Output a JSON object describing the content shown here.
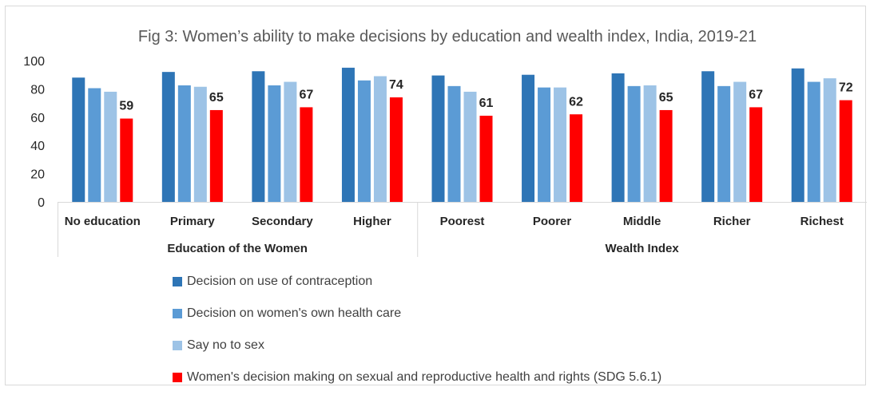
{
  "chart_data": {
    "type": "bar",
    "title": "Fig 3: Women’s ability to make decisions by education and wealth index, India, 2019-21",
    "ylim": [
      0,
      100
    ],
    "yticks": [
      0,
      20,
      40,
      60,
      80,
      100
    ],
    "categories": [
      "No education",
      "Primary",
      "Secondary",
      "Higher",
      "Poorest",
      "Poorer",
      "Middle",
      "Richer",
      "Richest"
    ],
    "groups": [
      {
        "label": "Education of the Women",
        "categories": [
          "No education",
          "Primary",
          "Secondary",
          "Higher"
        ]
      },
      {
        "label": "Wealth Index",
        "categories": [
          "Poorest",
          "Poorer",
          "Middle",
          "Richer",
          "Richest"
        ]
      }
    ],
    "series": [
      {
        "name": "Decision on use of contraception",
        "color": "#2e75b6",
        "values": [
          88,
          92,
          92.5,
          95,
          89.5,
          90,
          91,
          92.5,
          94.5
        ],
        "show_labels": false
      },
      {
        "name": "Decision on women's own health care",
        "color": "#5b9bd5",
        "values": [
          80.5,
          82.5,
          82.5,
          86,
          82,
          81,
          82,
          82,
          85
        ],
        "show_labels": false
      },
      {
        "name": "Say no to sex",
        "color": "#9dc3e6",
        "values": [
          78,
          81.5,
          85,
          89,
          78,
          81,
          82.5,
          85,
          87.5
        ],
        "show_labels": false
      },
      {
        "name": "Women's decision making on sexual and reproductive health and rights (SDG 5.6.1)",
        "color": "#ff0000",
        "values": [
          59,
          65,
          67,
          74,
          61,
          62,
          65,
          67,
          72
        ],
        "show_labels": true
      }
    ]
  }
}
